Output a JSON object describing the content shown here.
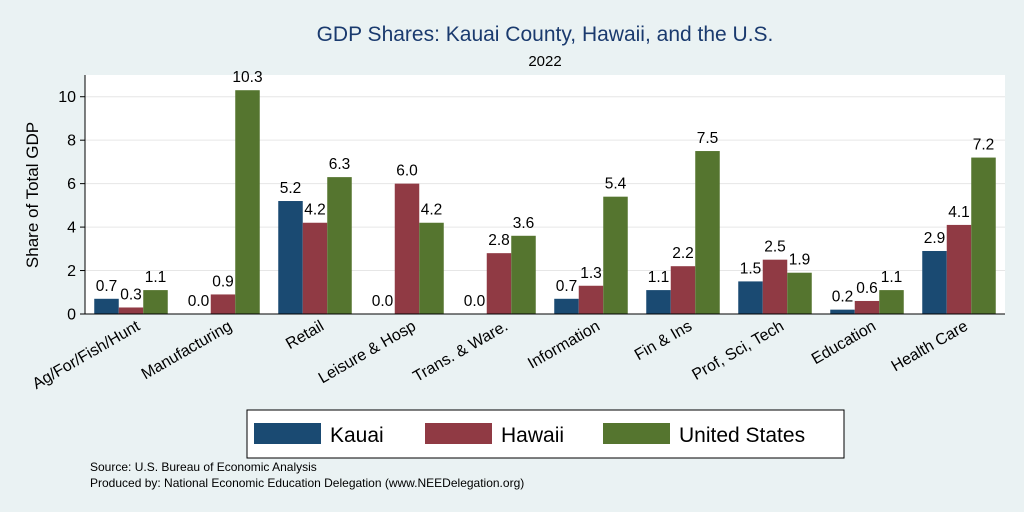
{
  "chart_data": {
    "type": "bar",
    "title": "GDP Shares: Kauai County, Hawaii, and the U.S.",
    "subtitle": "2022",
    "xlabel": "",
    "ylabel": "Share of Total GDP",
    "ylim": [
      0,
      11
    ],
    "yticks": [
      0,
      2,
      4,
      6,
      8,
      10
    ],
    "categories": [
      "Ag/For/Fish/Hunt",
      "Manufacturing",
      "Retail",
      "Leisure & Hosp",
      "Trans. & Ware.",
      "Information",
      "Fin & Ins",
      "Prof, Sci, Tech",
      "Education",
      "Health Care"
    ],
    "series": [
      {
        "name": "Kauai",
        "color": "#1a4a72",
        "values": [
          0.7,
          0.0,
          5.2,
          0.0,
          0.0,
          0.7,
          1.1,
          1.5,
          0.2,
          2.9
        ],
        "labels": [
          "0.7",
          "0.0",
          "5.2",
          "0.0",
          "0.0",
          "0.7",
          "1.1",
          "1.5",
          "0.2",
          "2.9"
        ]
      },
      {
        "name": "Hawaii",
        "color": "#903a44",
        "values": [
          0.3,
          0.9,
          4.2,
          6.0,
          2.8,
          1.3,
          2.2,
          2.5,
          0.6,
          4.1
        ],
        "labels": [
          "0.3",
          "0.9",
          "4.2",
          "6.0",
          "2.8",
          "1.3",
          "2.2",
          "2.5",
          "0.6",
          "4.1"
        ]
      },
      {
        "name": "United States",
        "color": "#55752f",
        "values": [
          1.1,
          10.3,
          6.3,
          4.2,
          3.6,
          5.4,
          7.5,
          1.9,
          1.1,
          7.2
        ],
        "labels": [
          "1.1",
          "10.3",
          "6.3",
          "4.2",
          "3.6",
          "5.4",
          "7.5",
          "1.9",
          "1.1",
          "7.2"
        ]
      }
    ],
    "grid": true,
    "legend": "bottom",
    "notes": [
      "Source: U.S. Bureau of Economic Analysis",
      "Produced by: National Economic Education Delegation (www.NEEDelegation.org)"
    ]
  }
}
